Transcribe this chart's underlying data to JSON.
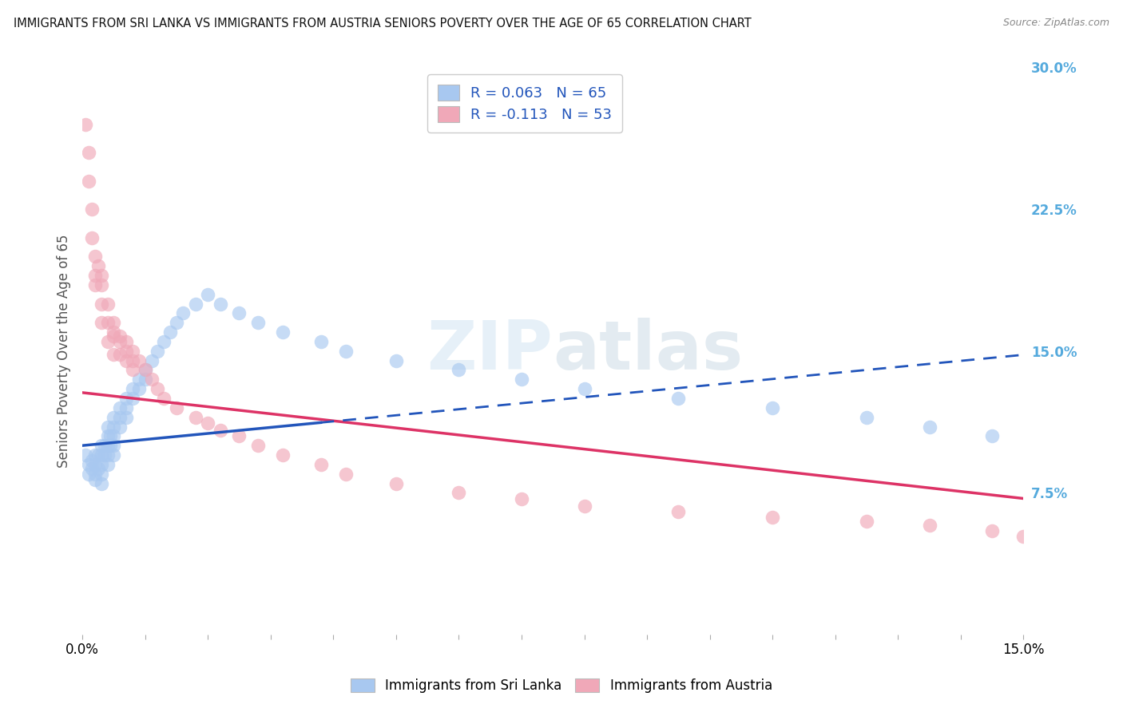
{
  "title": "IMMIGRANTS FROM SRI LANKA VS IMMIGRANTS FROM AUSTRIA SENIORS POVERTY OVER THE AGE OF 65 CORRELATION CHART",
  "source": "Source: ZipAtlas.com",
  "ylabel": "Seniors Poverty Over the Age of 65",
  "xlim": [
    0.0,
    0.15
  ],
  "ylim": [
    0.0,
    0.3
  ],
  "y_ticks_right": [
    0.075,
    0.15,
    0.225,
    0.3
  ],
  "y_tick_labels_right": [
    "7.5%",
    "15.0%",
    "22.5%",
    "30.0%"
  ],
  "grid_color": "#cccccc",
  "background_color": "#ffffff",
  "sri_lanka_color": "#a8c8f0",
  "austria_color": "#f0a8b8",
  "sri_lanka_line_color": "#2255bb",
  "austria_line_color": "#dd3366",
  "legend_sri_lanka": "Immigrants from Sri Lanka",
  "legend_austria": "Immigrants from Austria",
  "R_sri_lanka": 0.063,
  "N_sri_lanka": 65,
  "R_austria": -0.113,
  "N_austria": 53,
  "sri_lanka_x": [
    0.0005,
    0.001,
    0.001,
    0.0015,
    0.0015,
    0.002,
    0.002,
    0.002,
    0.002,
    0.0025,
    0.0025,
    0.003,
    0.003,
    0.003,
    0.003,
    0.003,
    0.0035,
    0.0035,
    0.004,
    0.004,
    0.004,
    0.004,
    0.004,
    0.0045,
    0.0045,
    0.005,
    0.005,
    0.005,
    0.005,
    0.005,
    0.006,
    0.006,
    0.006,
    0.007,
    0.007,
    0.007,
    0.008,
    0.008,
    0.009,
    0.009,
    0.01,
    0.01,
    0.011,
    0.012,
    0.013,
    0.014,
    0.015,
    0.016,
    0.018,
    0.02,
    0.022,
    0.025,
    0.028,
    0.032,
    0.038,
    0.042,
    0.05,
    0.06,
    0.07,
    0.08,
    0.095,
    0.11,
    0.125,
    0.135,
    0.145
  ],
  "sri_lanka_y": [
    0.095,
    0.09,
    0.085,
    0.092,
    0.088,
    0.095,
    0.09,
    0.085,
    0.082,
    0.095,
    0.088,
    0.1,
    0.095,
    0.09,
    0.085,
    0.08,
    0.1,
    0.095,
    0.11,
    0.105,
    0.1,
    0.095,
    0.09,
    0.105,
    0.1,
    0.115,
    0.11,
    0.105,
    0.1,
    0.095,
    0.12,
    0.115,
    0.11,
    0.125,
    0.12,
    0.115,
    0.13,
    0.125,
    0.135,
    0.13,
    0.14,
    0.135,
    0.145,
    0.15,
    0.155,
    0.16,
    0.165,
    0.17,
    0.175,
    0.18,
    0.175,
    0.17,
    0.165,
    0.16,
    0.155,
    0.15,
    0.145,
    0.14,
    0.135,
    0.13,
    0.125,
    0.12,
    0.115,
    0.11,
    0.105
  ],
  "austria_x": [
    0.0005,
    0.001,
    0.001,
    0.0015,
    0.0015,
    0.002,
    0.002,
    0.002,
    0.0025,
    0.003,
    0.003,
    0.003,
    0.003,
    0.004,
    0.004,
    0.004,
    0.005,
    0.005,
    0.005,
    0.006,
    0.006,
    0.007,
    0.007,
    0.008,
    0.008,
    0.009,
    0.01,
    0.011,
    0.012,
    0.013,
    0.015,
    0.018,
    0.02,
    0.022,
    0.025,
    0.028,
    0.032,
    0.038,
    0.042,
    0.05,
    0.06,
    0.07,
    0.08,
    0.095,
    0.11,
    0.125,
    0.135,
    0.145,
    0.15,
    0.005,
    0.006,
    0.007,
    0.008
  ],
  "austria_y": [
    0.27,
    0.255,
    0.24,
    0.225,
    0.21,
    0.2,
    0.19,
    0.185,
    0.195,
    0.19,
    0.185,
    0.175,
    0.165,
    0.175,
    0.165,
    0.155,
    0.165,
    0.158,
    0.148,
    0.158,
    0.148,
    0.155,
    0.145,
    0.15,
    0.14,
    0.145,
    0.14,
    0.135,
    0.13,
    0.125,
    0.12,
    0.115,
    0.112,
    0.108,
    0.105,
    0.1,
    0.095,
    0.09,
    0.085,
    0.08,
    0.075,
    0.072,
    0.068,
    0.065,
    0.062,
    0.06,
    0.058,
    0.055,
    0.052,
    0.16,
    0.155,
    0.15,
    0.145
  ],
  "sri_lanka_trend": [
    0.1,
    0.148
  ],
  "austria_trend": [
    0.128,
    0.072
  ],
  "sri_lanka_trend_dashed_start": 0.038
}
